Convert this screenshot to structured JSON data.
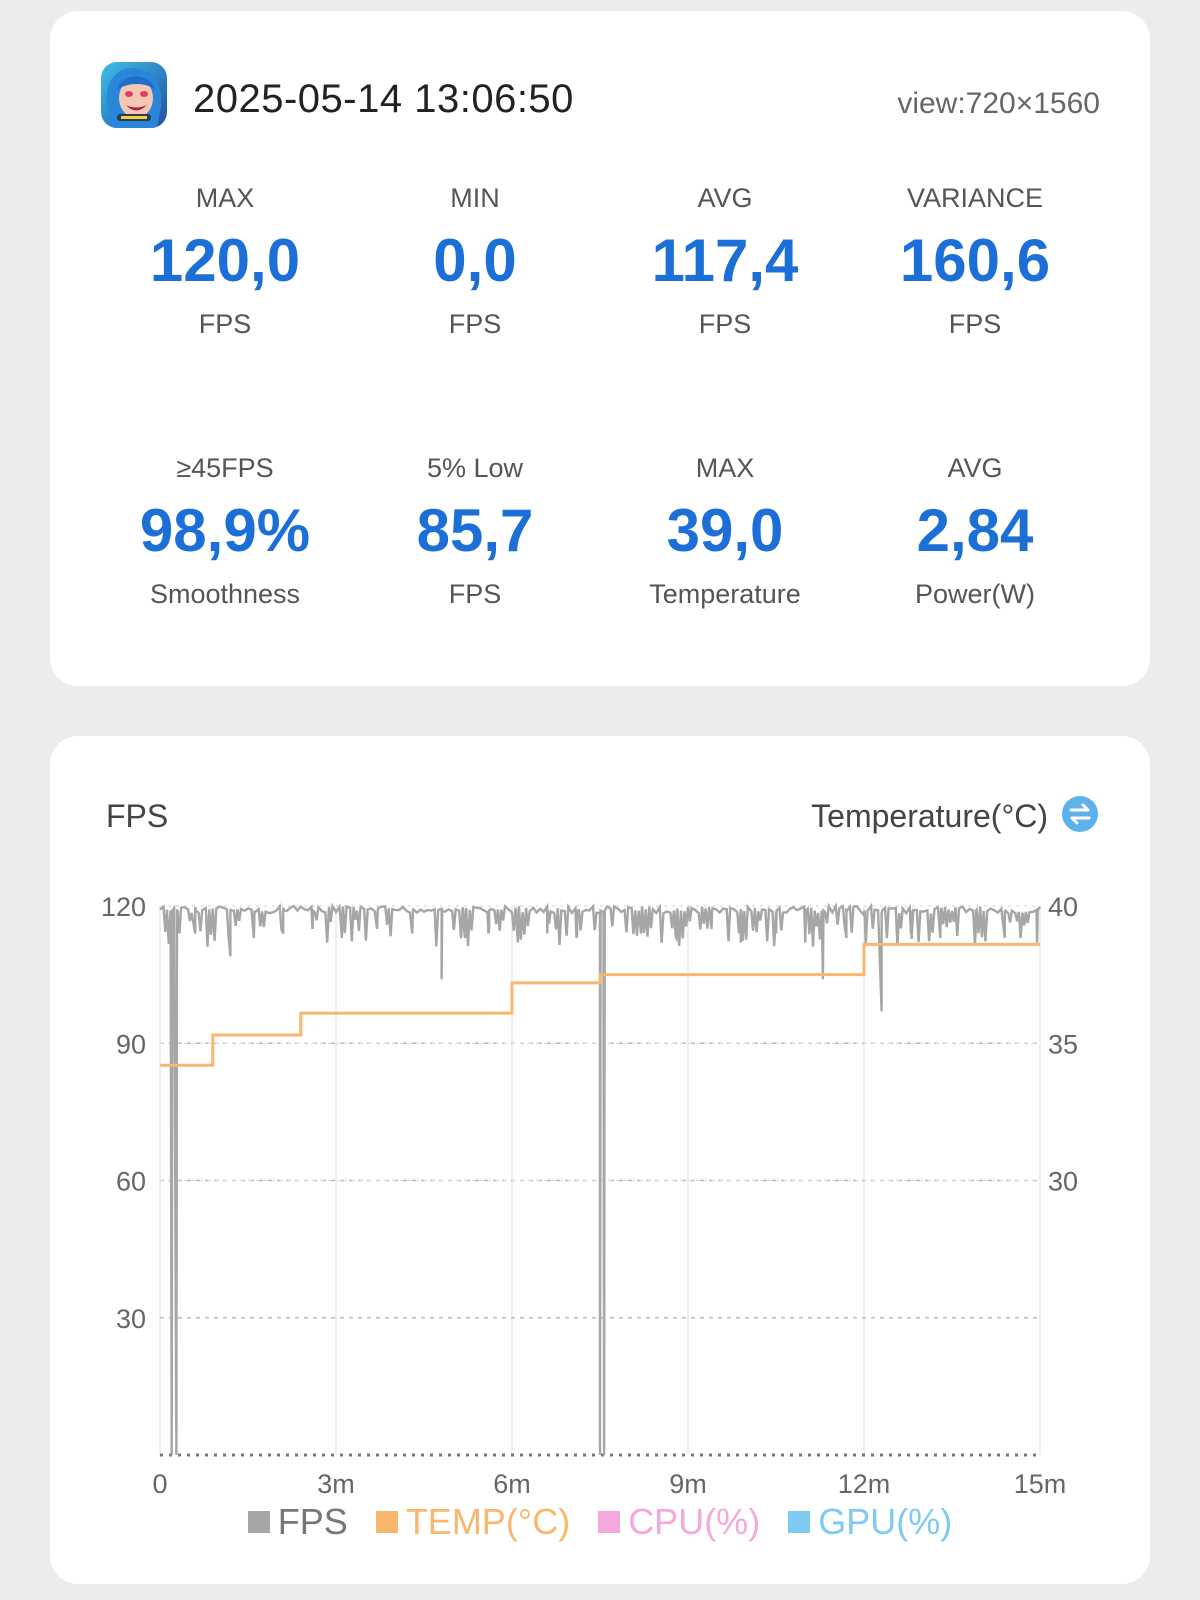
{
  "header": {
    "app_icon": "jinx-game-icon",
    "datetime": "2025-05-14 13:06:50",
    "view": "view:720×1560"
  },
  "stats": [
    {
      "label": "MAX",
      "value": "120,0",
      "unit": "FPS"
    },
    {
      "label": "MIN",
      "value": "0,0",
      "unit": "FPS"
    },
    {
      "label": "AVG",
      "value": "117,4",
      "unit": "FPS"
    },
    {
      "label": "VARIANCE",
      "value": "160,6",
      "unit": "FPS"
    },
    {
      "label": "≥45FPS",
      "value": "98,9%",
      "unit": "Smoothness"
    },
    {
      "label": "5% Low",
      "value": "85,7",
      "unit": "FPS"
    },
    {
      "label": "MAX",
      "value": "39,0",
      "unit": "Temperature"
    },
    {
      "label": "AVG",
      "value": "2,84",
      "unit": "Power(W)"
    }
  ],
  "chart_header": {
    "left_title": "FPS",
    "right_title": "Temperature(°C)",
    "swap_icon": "swap-arrows-icon"
  },
  "legend": [
    {
      "label": "FPS",
      "color": "#a6a6a6"
    },
    {
      "label": "TEMP(°C)",
      "color": "#f9b76e"
    },
    {
      "label": "CPU(%)",
      "color": "#f4a8db"
    },
    {
      "label": "GPU(%)",
      "color": "#7fcaf3"
    }
  ],
  "chart_data": {
    "type": "line",
    "xlabel": "",
    "ylabel": "FPS",
    "y2label": "Temperature(°C)",
    "xlim": [
      0,
      15
    ],
    "ylim": [
      0,
      120
    ],
    "y2lim": [
      20,
      40
    ],
    "x_ticks": [
      {
        "value": 0,
        "label": "0"
      },
      {
        "value": 3,
        "label": "3m"
      },
      {
        "value": 6,
        "label": "6m"
      },
      {
        "value": 9,
        "label": "9m"
      },
      {
        "value": 12,
        "label": "12m"
      },
      {
        "value": 15,
        "label": "15m"
      }
    ],
    "y_ticks": [
      {
        "value": 30,
        "label": "30"
      },
      {
        "value": 60,
        "label": "60"
      },
      {
        "value": 90,
        "label": "90"
      },
      {
        "value": 120,
        "label": "120"
      }
    ],
    "y2_ticks": [
      {
        "value": 30,
        "label": "30"
      },
      {
        "value": 35,
        "label": "35"
      },
      {
        "value": 40,
        "label": "40"
      }
    ],
    "grid": true,
    "series": [
      {
        "name": "FPS",
        "color": "#a6a6a6",
        "axis": "left",
        "baseline": 120,
        "dips": [
          [
            0.2,
            0
          ],
          [
            0.28,
            0
          ],
          [
            0.6,
            114
          ],
          [
            1.2,
            109
          ],
          [
            1.6,
            113
          ],
          [
            2.1,
            114
          ],
          [
            2.6,
            115
          ],
          [
            3.1,
            113
          ],
          [
            3.7,
            115
          ],
          [
            4.3,
            114
          ],
          [
            4.8,
            104
          ],
          [
            5.2,
            113
          ],
          [
            5.6,
            114
          ],
          [
            6.1,
            112
          ],
          [
            6.6,
            114
          ],
          [
            7.1,
            113
          ],
          [
            7.5,
            0
          ],
          [
            7.57,
            0
          ],
          [
            8.2,
            114
          ],
          [
            8.8,
            113
          ],
          [
            9.4,
            115
          ],
          [
            9.9,
            112
          ],
          [
            10.5,
            114
          ],
          [
            11.0,
            112
          ],
          [
            11.3,
            104
          ],
          [
            11.7,
            113
          ],
          [
            12.0,
            118
          ],
          [
            12.3,
            97
          ],
          [
            12.8,
            114
          ],
          [
            13.3,
            113
          ],
          [
            13.9,
            114
          ],
          [
            14.4,
            113
          ],
          [
            14.95,
            112
          ]
        ]
      },
      {
        "name": "TEMP(°C)",
        "color": "#f9b76e",
        "axis": "right",
        "steps": [
          [
            0,
            34.2
          ],
          [
            0.9,
            34.2
          ],
          [
            0.9,
            35.3
          ],
          [
            2.4,
            35.3
          ],
          [
            2.4,
            36.1
          ],
          [
            6.0,
            36.1
          ],
          [
            6.0,
            37.2
          ],
          [
            7.5,
            37.2
          ],
          [
            7.5,
            37.5
          ],
          [
            12.0,
            37.5
          ],
          [
            12.0,
            38.6
          ],
          [
            15,
            38.6
          ]
        ]
      }
    ]
  }
}
